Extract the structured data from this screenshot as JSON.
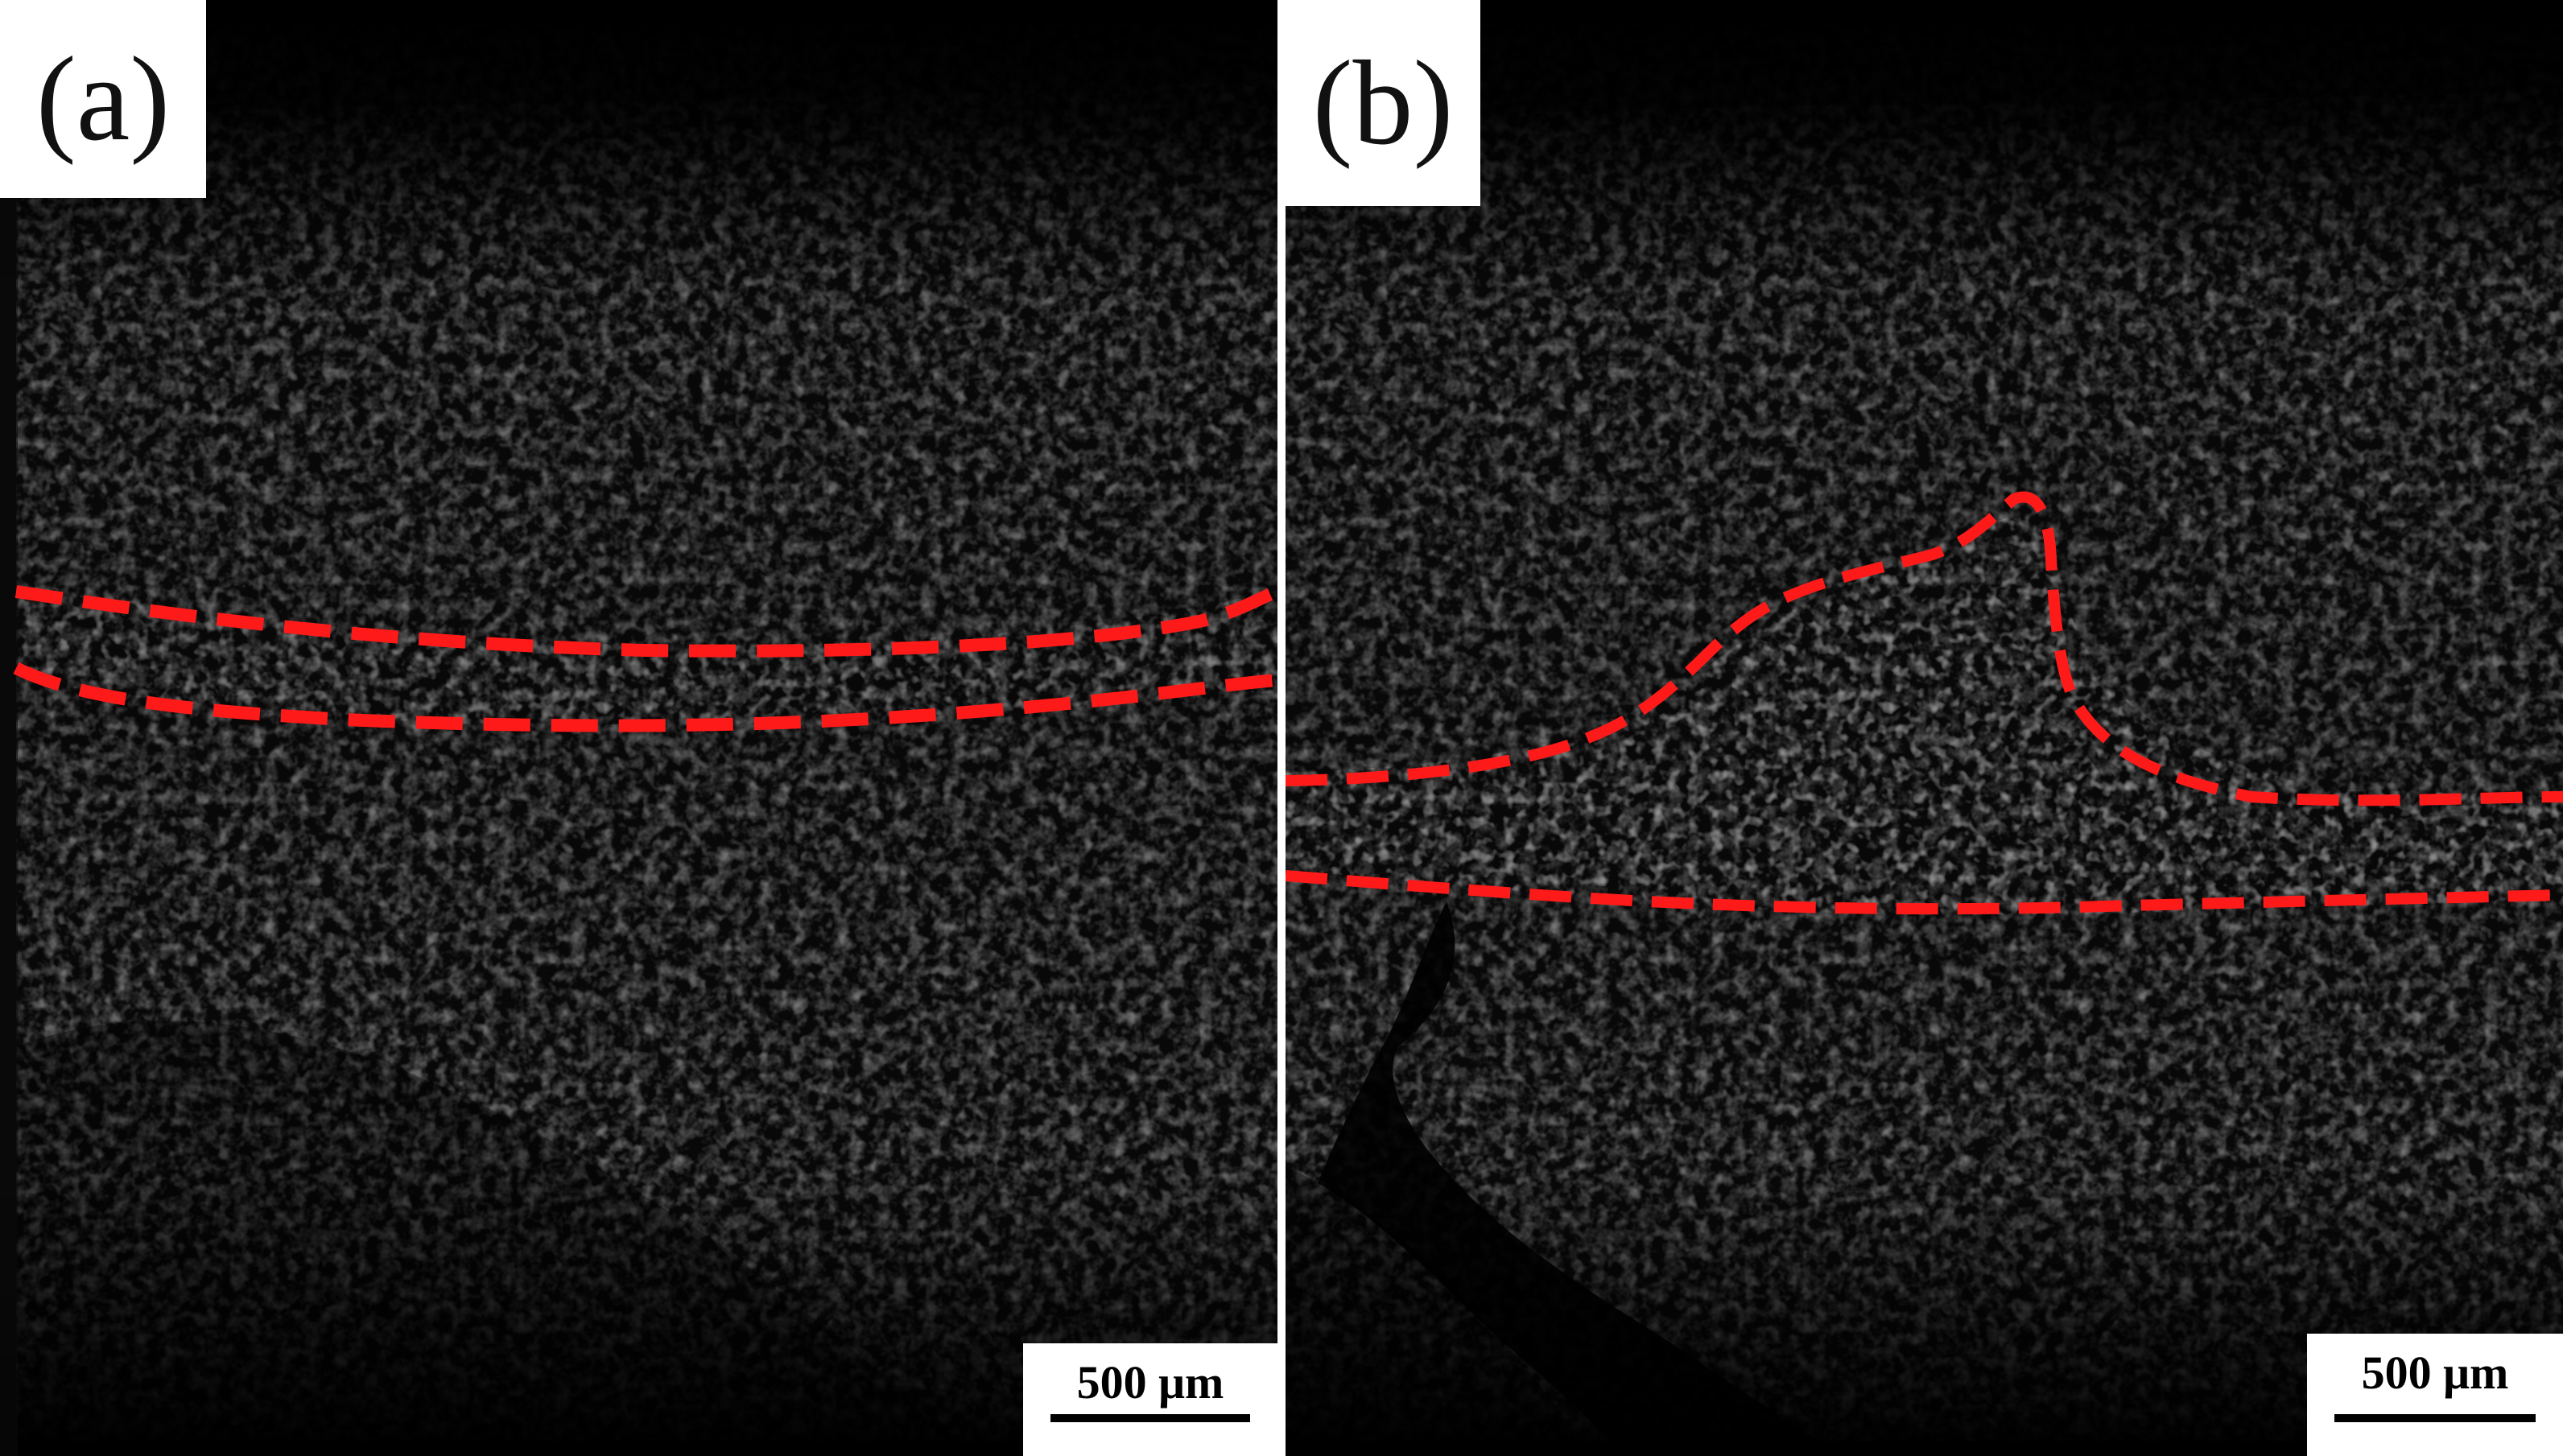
{
  "figure": {
    "panels": [
      {
        "label": "(a)",
        "scale_bar": "500 μm",
        "boundary_color": "#ff1a1a",
        "boundary_count": 2
      },
      {
        "label": "(b)",
        "scale_bar": "500 μm",
        "boundary_color": "#ff1a1a",
        "boundary_count": 2
      }
    ]
  }
}
